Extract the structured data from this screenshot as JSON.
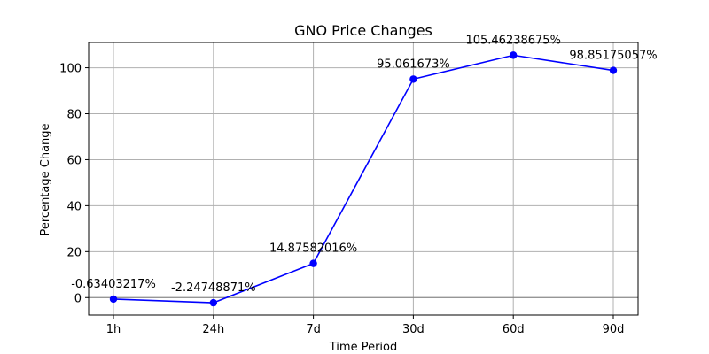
{
  "chart_data": {
    "type": "line",
    "title": "GNO Price Changes",
    "xlabel": "Time Period",
    "ylabel": "Percentage Change",
    "categories": [
      "1h",
      "24h",
      "7d",
      "30d",
      "60d",
      "90d"
    ],
    "values": [
      -0.63403217,
      -2.24748871,
      14.87582016,
      95.061673,
      105.46238675,
      98.85175057
    ],
    "data_labels": [
      "-0.63403217%",
      "-2.24748871%",
      "14.87582016%",
      "95.061673%",
      "105.46238675%",
      "98.85175057%"
    ],
    "yticks": [
      0,
      20,
      40,
      60,
      80,
      100
    ],
    "ylim": [
      -7.6,
      111.0
    ],
    "grid": true,
    "zero_line": true,
    "line_color": "#0000ff",
    "marker": "circle",
    "zero_line_color": "#808080",
    "grid_color": "#b0b0b0"
  }
}
